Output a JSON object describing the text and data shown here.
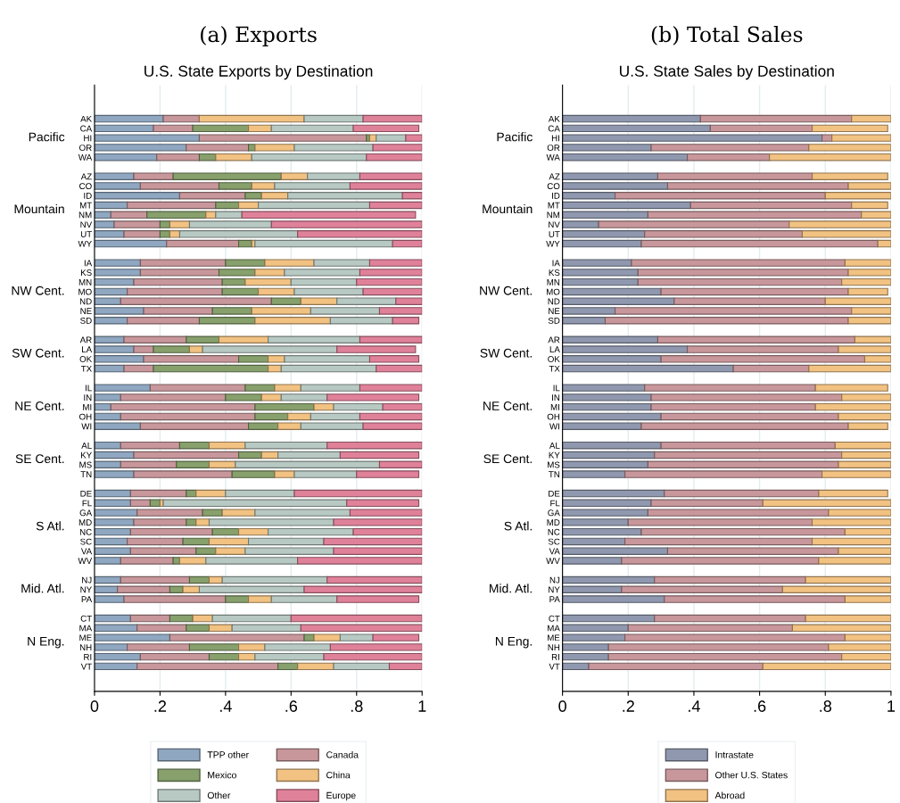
{
  "chart_data": [
    {
      "type": "bar",
      "orientation": "horizontal",
      "stacked": true,
      "title": "(a) Exports",
      "subtitle": "U.S. State Exports by Destination",
      "categories": [
        "AK",
        "CA",
        "HI",
        "OR",
        "WA",
        null,
        "AZ",
        "CO",
        "ID",
        "MT",
        "NM",
        "NV",
        "UT",
        "WY",
        null,
        "IA",
        "KS",
        "MN",
        "MO",
        "ND",
        "NE",
        "SD",
        null,
        "AR",
        "LA",
        "OK",
        "TX",
        null,
        "IL",
        "IN",
        "MI",
        "OH",
        "WI",
        null,
        "AL",
        "KY",
        "MS",
        "TN",
        null,
        "DE",
        "FL",
        "GA",
        "MD",
        "NC",
        "SC",
        "VA",
        "WV",
        null,
        "NJ",
        "NY",
        "PA",
        null,
        "CT",
        "MA",
        "ME",
        "NH",
        "RI",
        "VT"
      ],
      "annotations": [
        "Pacific",
        "Mountain",
        "NW Cent.",
        "SW Cent.",
        "NE Cent.",
        "SE Cent.",
        "S Atl.",
        "Mid. Atl.",
        "N Eng."
      ],
      "series": [
        {
          "name": "TPP other",
          "color": "#8fa7c0",
          "values": [
            0.21,
            0.18,
            0.32,
            0.28,
            0.19,
            null,
            0.12,
            0.14,
            0.26,
            0.1,
            0.05,
            0.06,
            0.09,
            0.22,
            null,
            0.14,
            0.14,
            0.12,
            0.1,
            0.08,
            0.15,
            0.1,
            null,
            0.09,
            0.12,
            0.15,
            0.09,
            null,
            0.17,
            0.08,
            0.05,
            0.08,
            0.14,
            null,
            0.08,
            0.12,
            0.08,
            0.12,
            null,
            0.11,
            0.11,
            0.13,
            0.12,
            0.11,
            0.1,
            0.11,
            0.08,
            null,
            0.08,
            0.07,
            0.09,
            null,
            0.11,
            0.13,
            0.23,
            0.1,
            0.14,
            0.13
          ]
        },
        {
          "name": "Canada",
          "color": "#c8979b",
          "values": [
            0.11,
            0.12,
            0.51,
            0.19,
            0.13,
            null,
            0.12,
            0.24,
            0.2,
            0.27,
            0.11,
            0.14,
            0.11,
            0.22,
            null,
            0.26,
            0.24,
            0.27,
            0.29,
            0.46,
            0.21,
            0.22,
            null,
            0.19,
            0.06,
            0.29,
            0.09,
            null,
            0.29,
            0.32,
            0.44,
            0.41,
            0.33,
            null,
            0.18,
            0.32,
            0.17,
            0.3,
            null,
            0.17,
            0.06,
            0.2,
            0.16,
            0.25,
            0.17,
            0.2,
            0.16,
            null,
            0.21,
            0.16,
            0.31,
            null,
            0.12,
            0.15,
            0.41,
            0.19,
            0.21,
            0.43
          ]
        },
        {
          "name": "Mexico",
          "color": "#87a06c",
          "values": [
            0.0,
            0.17,
            0.01,
            0.02,
            0.05,
            null,
            0.33,
            0.1,
            0.05,
            0.07,
            0.18,
            0.03,
            0.03,
            0.04,
            null,
            0.12,
            0.11,
            0.07,
            0.11,
            0.09,
            0.12,
            0.17,
            null,
            0.1,
            0.11,
            0.09,
            0.35,
            null,
            0.09,
            0.11,
            0.18,
            0.1,
            0.09,
            null,
            0.09,
            0.07,
            0.1,
            0.13,
            null,
            0.03,
            0.03,
            0.06,
            0.03,
            0.08,
            0.08,
            0.06,
            0.02,
            null,
            0.06,
            0.04,
            0.07,
            null,
            0.07,
            0.07,
            0.03,
            0.15,
            0.09,
            0.06
          ]
        },
        {
          "name": "China",
          "color": "#f2c282",
          "values": [
            0.32,
            0.07,
            0.02,
            0.12,
            0.11,
            null,
            0.08,
            0.07,
            0.08,
            0.06,
            0.03,
            0.06,
            0.03,
            0.01,
            null,
            0.15,
            0.09,
            0.14,
            0.11,
            0.11,
            0.18,
            0.23,
            null,
            0.15,
            0.04,
            0.05,
            0.04,
            null,
            0.08,
            0.06,
            0.06,
            0.07,
            0.07,
            null,
            0.11,
            0.05,
            0.08,
            0.06,
            null,
            0.09,
            0.01,
            0.1,
            0.04,
            0.09,
            0.12,
            0.09,
            0.08,
            null,
            0.04,
            0.05,
            0.07,
            null,
            0.06,
            0.07,
            0.08,
            0.08,
            0.05,
            0.11
          ]
        },
        {
          "name": "Other",
          "color": "#b8c9c3",
          "values": [
            0.18,
            0.25,
            0.09,
            0.24,
            0.35,
            null,
            0.16,
            0.23,
            0.35,
            0.34,
            0.08,
            0.25,
            0.36,
            0.42,
            null,
            0.17,
            0.23,
            0.2,
            0.21,
            0.18,
            0.21,
            0.19,
            null,
            0.28,
            0.41,
            0.26,
            0.29,
            null,
            0.18,
            0.14,
            0.15,
            0.15,
            0.19,
            null,
            0.25,
            0.19,
            0.44,
            0.19,
            null,
            0.21,
            0.56,
            0.29,
            0.38,
            0.26,
            0.23,
            0.27,
            0.28,
            null,
            0.32,
            0.32,
            0.2,
            null,
            0.24,
            0.21,
            0.1,
            0.2,
            0.21,
            0.17
          ]
        },
        {
          "name": "Europe",
          "color": "#e0819a",
          "values": [
            0.18,
            0.2,
            0.05,
            0.15,
            0.17,
            null,
            0.19,
            0.22,
            0.06,
            0.16,
            0.53,
            0.46,
            0.38,
            0.09,
            null,
            0.16,
            0.19,
            0.2,
            0.18,
            0.08,
            0.13,
            0.08,
            null,
            0.19,
            0.24,
            0.15,
            0.14,
            null,
            0.19,
            0.28,
            0.12,
            0.19,
            0.18,
            null,
            0.29,
            0.24,
            0.13,
            0.19,
            null,
            0.39,
            0.22,
            0.22,
            0.27,
            0.21,
            0.3,
            0.27,
            0.38,
            null,
            0.29,
            0.36,
            0.25,
            null,
            0.4,
            0.37,
            0.14,
            0.28,
            0.3,
            0.1
          ]
        }
      ],
      "xlim": [
        0,
        1
      ],
      "xticks": [
        0,
        {
          "value": 0.2,
          "label": ".2"
        },
        {
          "value": 0.4,
          "label": ".4"
        },
        {
          "value": 0.6,
          "label": ".6"
        },
        {
          "value": 0.8,
          "label": ".8"
        },
        1
      ],
      "grid": "x",
      "legend": "bottom"
    },
    {
      "type": "bar",
      "orientation": "horizontal",
      "stacked": true,
      "title": "(b) Total Sales",
      "subtitle": "U.S. State Sales by Destination",
      "categories": [
        "AK",
        "CA",
        "HI",
        "OR",
        "WA",
        null,
        "AZ",
        "CO",
        "ID",
        "MT",
        "NM",
        "NV",
        "UT",
        "WY",
        null,
        "IA",
        "KS",
        "MN",
        "MO",
        "ND",
        "NE",
        "SD",
        null,
        "AR",
        "LA",
        "OK",
        "TX",
        null,
        "IL",
        "IN",
        "MI",
        "OH",
        "WI",
        null,
        "AL",
        "KY",
        "MS",
        "TN",
        null,
        "DE",
        "FL",
        "GA",
        "MD",
        "NC",
        "SC",
        "VA",
        "WV",
        null,
        "NJ",
        "NY",
        "PA",
        null,
        "CT",
        "MA",
        "ME",
        "NH",
        "RI",
        "VT"
      ],
      "annotations": [
        "Pacific",
        "Mountain",
        "NW Cent.",
        "SW Cent.",
        "NE Cent.",
        "SE Cent.",
        "S Atl.",
        "Mid. Atl.",
        "N Eng."
      ],
      "series": [
        {
          "name": "Intrastate",
          "color": "#8f98ae",
          "values": [
            0.42,
            0.45,
            0.79,
            0.27,
            0.38,
            null,
            0.29,
            0.32,
            0.16,
            0.39,
            0.26,
            0.11,
            0.25,
            0.24,
            null,
            0.21,
            0.23,
            0.23,
            0.3,
            0.34,
            0.16,
            0.13,
            null,
            0.29,
            0.38,
            0.3,
            0.52,
            null,
            0.25,
            0.27,
            0.27,
            0.3,
            0.24,
            null,
            0.3,
            0.28,
            0.26,
            0.19,
            null,
            0.31,
            0.27,
            0.26,
            0.2,
            0.24,
            0.19,
            0.32,
            0.18,
            null,
            0.28,
            0.18,
            0.31,
            null,
            0.28,
            0.2,
            0.19,
            0.14,
            0.14,
            0.08
          ]
        },
        {
          "name": "Other U.S. States",
          "color": "#c8979b",
          "values": [
            0.46,
            0.31,
            0.03,
            0.48,
            0.25,
            null,
            0.47,
            0.55,
            0.64,
            0.49,
            0.65,
            0.58,
            0.48,
            0.72,
            null,
            0.65,
            0.64,
            0.62,
            0.57,
            0.46,
            0.72,
            0.74,
            null,
            0.6,
            0.46,
            0.62,
            0.23,
            null,
            0.52,
            0.58,
            0.5,
            0.54,
            0.63,
            null,
            0.53,
            0.57,
            0.58,
            0.6,
            null,
            0.47,
            0.34,
            0.55,
            0.56,
            0.62,
            0.57,
            0.52,
            0.6,
            null,
            0.46,
            0.49,
            0.55,
            null,
            0.46,
            0.5,
            0.67,
            0.67,
            0.71,
            0.53
          ]
        },
        {
          "name": "Abroad",
          "color": "#f2c282",
          "values": [
            0.12,
            0.23,
            0.18,
            0.25,
            0.37,
            null,
            0.23,
            0.13,
            0.2,
            0.11,
            0.09,
            0.31,
            0.27,
            0.04,
            null,
            0.14,
            0.13,
            0.15,
            0.12,
            0.2,
            0.12,
            0.13,
            null,
            0.11,
            0.16,
            0.08,
            0.25,
            null,
            0.22,
            0.15,
            0.23,
            0.16,
            0.12,
            null,
            0.17,
            0.15,
            0.16,
            0.21,
            null,
            0.21,
            0.39,
            0.19,
            0.24,
            0.14,
            0.24,
            0.16,
            0.22,
            null,
            0.26,
            0.33,
            0.14,
            null,
            0.26,
            0.3,
            0.14,
            0.19,
            0.15,
            0.39
          ]
        }
      ],
      "xlim": [
        0,
        1
      ],
      "xticks": [
        0,
        {
          "value": 0.2,
          "label": ".2"
        },
        {
          "value": 0.4,
          "label": ".4"
        },
        {
          "value": 0.6,
          "label": ".6"
        },
        {
          "value": 0.8,
          "label": ".8"
        },
        1
      ],
      "grid": "x",
      "legend": "bottom"
    }
  ]
}
